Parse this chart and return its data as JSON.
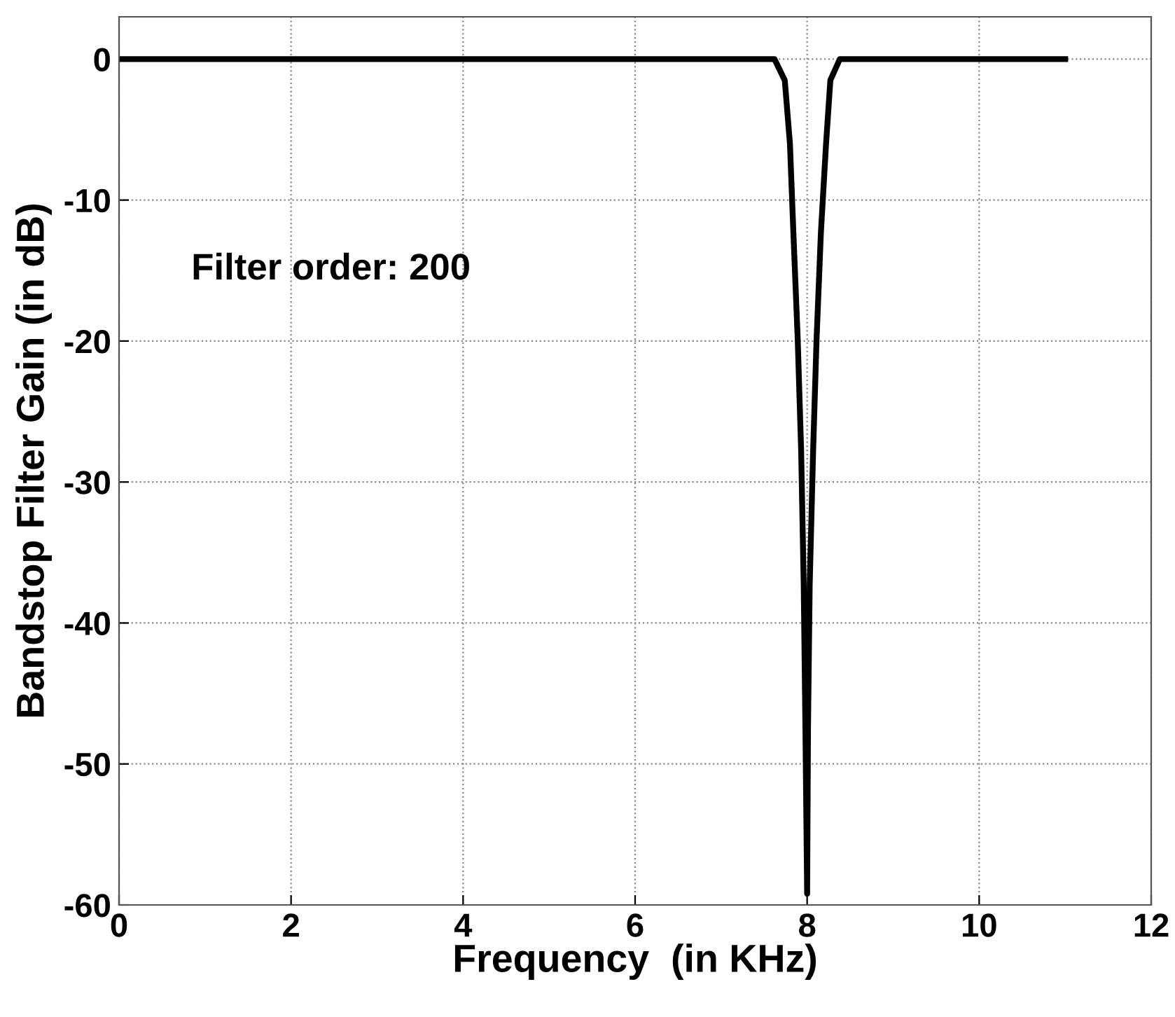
{
  "chart_data": {
    "type": "line",
    "xlabel": "Frequency  (in KHz)",
    "ylabel": "Bandstop Filter Gain (in dB)",
    "annotations": [
      "Filter order: 200"
    ],
    "series": [
      {
        "color": "#000000",
        "x": [
          0,
          7.62,
          7.74,
          7.8,
          7.84,
          7.89,
          7.93,
          7.96,
          7.98,
          8.0,
          8.01,
          8.03,
          8.07,
          8.11,
          8.16,
          8.22,
          8.27,
          8.38,
          11
        ],
        "values": [
          0,
          0,
          -1.5,
          -6.0,
          -12.3,
          -19.8,
          -27.7,
          -37.2,
          -47.5,
          -59.2,
          -47.5,
          -37.2,
          -27.7,
          -19.8,
          -12.3,
          -6.0,
          -1.5,
          0,
          0
        ]
      }
    ],
    "xlim": [
      0,
      12
    ],
    "xticks": [
      0,
      2,
      4,
      6,
      8,
      10,
      12
    ],
    "ylim": [
      -60,
      3
    ],
    "yticks": [
      -60,
      -50,
      -40,
      -30,
      -20,
      -10,
      0
    ],
    "grid": true,
    "line_style": "solid",
    "marker": "none"
  }
}
